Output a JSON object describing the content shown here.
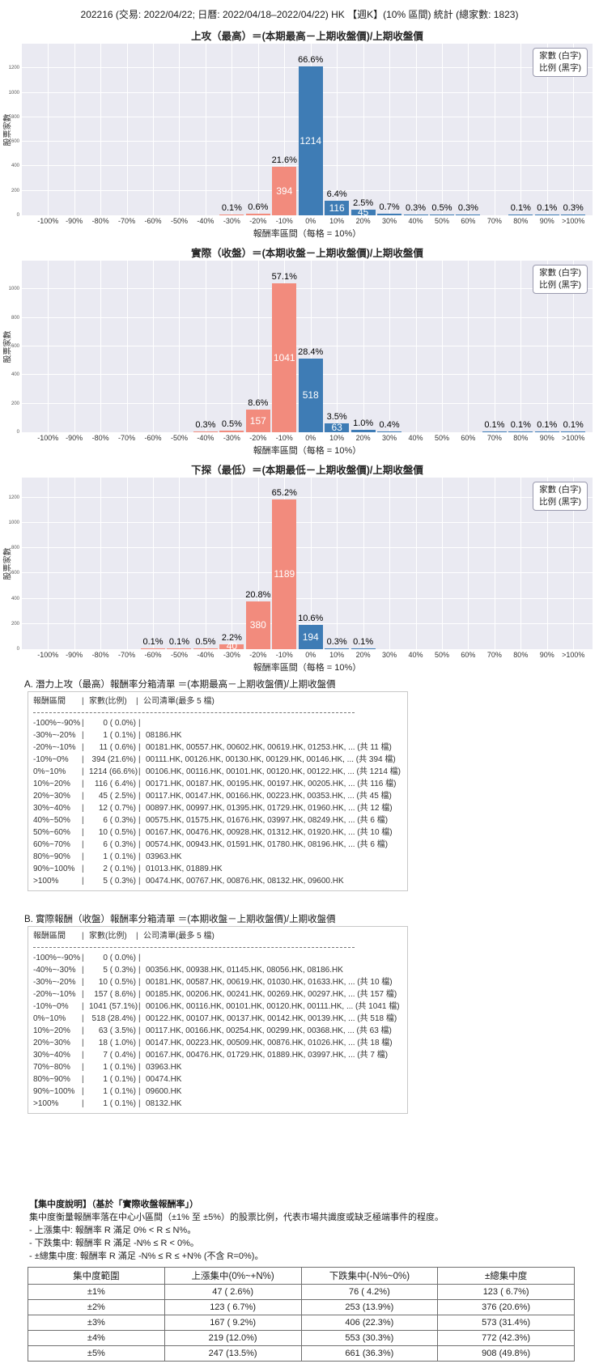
{
  "page_title": "202216 (交易: 2022/04/22; 日曆: 2022/04/18–2022/04/22) HK 【週K】(10% 區間) 統計 (總家數: 1823)",
  "total_count": 1823,
  "colors": {
    "negative_bar": "#F28B7D",
    "positive_bar": "#3E7CB5",
    "plot_bg": "#EAEAF2",
    "grid": "#FFFFFF"
  },
  "legend": {
    "line1": "家數 (白字)",
    "line2": "比例 (黑字)"
  },
  "axis": {
    "ylabel": "股票家數",
    "xlabel": "報酬率區間（每格 = 10%）"
  },
  "chart_data": [
    {
      "type": "bar",
      "title": "上攻（最高）＝(本期最高－上期收盤價)/上期收盤價",
      "categories": [
        "-100%",
        "-90%",
        "-80%",
        "-70%",
        "-60%",
        "-50%",
        "-40%",
        "-30%",
        "-20%",
        "-10%",
        "0%",
        "10%",
        "20%",
        "30%",
        "40%",
        "50%",
        "60%",
        "70%",
        "80%",
        "90%",
        ">100%"
      ],
      "values": [
        0,
        0,
        0,
        0,
        0,
        0,
        0,
        1,
        11,
        394,
        1214,
        116,
        45,
        12,
        6,
        10,
        6,
        0,
        1,
        2,
        5
      ],
      "pct_labels": [
        "",
        "",
        "",
        "",
        "",
        "",
        "",
        "0.1%",
        "0.6%",
        "21.6%",
        "66.6%",
        "6.4%",
        "2.5%",
        "0.7%",
        "0.3%",
        "0.5%",
        "0.3%",
        "",
        "0.1%",
        "0.1%",
        "0.3%"
      ],
      "xlabel": "報酬率區間（每格 = 10%）",
      "ylabel": "股票家數",
      "yticks": [
        0,
        200,
        400,
        600,
        800,
        1000,
        1200
      ],
      "ymax": 1400
    },
    {
      "type": "bar",
      "title": "實際（收盤）＝(本期收盤－上期收盤價)/上期收盤價",
      "categories": [
        "-100%",
        "-90%",
        "-80%",
        "-70%",
        "-60%",
        "-50%",
        "-40%",
        "-30%",
        "-20%",
        "-10%",
        "0%",
        "10%",
        "20%",
        "30%",
        "40%",
        "50%",
        "60%",
        "70%",
        "80%",
        "90%",
        ">100%"
      ],
      "values": [
        0,
        0,
        0,
        0,
        0,
        0,
        5,
        10,
        157,
        1041,
        518,
        63,
        18,
        7,
        0,
        0,
        0,
        1,
        1,
        1,
        1
      ],
      "pct_labels": [
        "",
        "",
        "",
        "",
        "",
        "",
        "0.3%",
        "0.5%",
        "8.6%",
        "57.1%",
        "28.4%",
        "3.5%",
        "1.0%",
        "0.4%",
        "",
        "",
        "",
        "0.1%",
        "0.1%",
        "0.1%",
        "0.1%"
      ],
      "xlabel": "報酬率區間（每格 = 10%）",
      "ylabel": "股票家數",
      "yticks": [
        0,
        200,
        400,
        600,
        800,
        1000
      ],
      "ymax": 1200
    },
    {
      "type": "bar",
      "title": "下探（最低）＝(本期最低－上期收盤價)/上期收盤價",
      "categories": [
        "-100%",
        "-90%",
        "-80%",
        "-70%",
        "-60%",
        "-50%",
        "-40%",
        "-30%",
        "-20%",
        "-10%",
        "0%",
        "10%",
        "20%",
        "30%",
        "40%",
        "50%",
        "60%",
        "70%",
        "80%",
        "90%",
        ">100%"
      ],
      "values": [
        0,
        0,
        0,
        0,
        2,
        2,
        9,
        40,
        380,
        1189,
        194,
        5,
        2,
        0,
        0,
        0,
        0,
        0,
        0,
        0,
        0
      ],
      "pct_labels": [
        "",
        "",
        "",
        "",
        "0.1%",
        "0.1%",
        "0.5%",
        "2.2%",
        "20.8%",
        "65.2%",
        "10.6%",
        "0.3%",
        "0.1%",
        "",
        "",
        "",
        "",
        "",
        "",
        "",
        ""
      ],
      "xlabel": "報酬率區間（每格 = 10%）",
      "ylabel": "股票家數",
      "yticks": [
        0,
        200,
        400,
        600,
        800,
        1000,
        1200
      ],
      "ymax": 1360
    }
  ],
  "list_a": {
    "title": "A. 潛力上攻（最高）報酬率分箱清單 ＝(本期最高－上期收盤價)/上期收盤價",
    "columns": {
      "range": "報酬區間",
      "count": "家數(比例)",
      "companies": "公司清單(最多 5 檔)"
    },
    "rows": [
      {
        "range": "-100%~-90%",
        "count": "0 ( 0.0%)",
        "companies": ""
      },
      {
        "range": "-30%~-20%",
        "count": "1 ( 0.1%)",
        "companies": "08186.HK"
      },
      {
        "range": "-20%~-10%",
        "count": "11 ( 0.6%)",
        "companies": "00181.HK, 00557.HK, 00602.HK, 00619.HK, 01253.HK, ... (共 11 檔)"
      },
      {
        "range": "-10%~0%",
        "count": "394 (21.6%)",
        "companies": "00111.HK, 00126.HK, 00130.HK, 00129.HK, 00146.HK, ... (共 394 檔)"
      },
      {
        "range": "0%~10%",
        "count": "1214 (66.6%)",
        "companies": "00106.HK, 00116.HK, 00101.HK, 00120.HK, 00122.HK, ... (共 1214 檔)"
      },
      {
        "range": "10%~20%",
        "count": "116 ( 6.4%)",
        "companies": "00171.HK, 00187.HK, 00195.HK, 00197.HK, 00205.HK, ... (共 116 檔)"
      },
      {
        "range": "20%~30%",
        "count": "45 ( 2.5%)",
        "companies": "00117.HK, 00147.HK, 00166.HK, 00223.HK, 00353.HK, ... (共 45 檔)"
      },
      {
        "range": "30%~40%",
        "count": "12 ( 0.7%)",
        "companies": "00897.HK, 00997.HK, 01395.HK, 01729.HK, 01960.HK, ... (共 12 檔)"
      },
      {
        "range": "40%~50%",
        "count": "6 ( 0.3%)",
        "companies": "00575.HK, 01575.HK, 01676.HK, 03997.HK, 08249.HK, ... (共 6 檔)"
      },
      {
        "range": "50%~60%",
        "count": "10 ( 0.5%)",
        "companies": "00167.HK, 00476.HK, 00928.HK, 01312.HK, 01920.HK, ... (共 10 檔)"
      },
      {
        "range": "60%~70%",
        "count": "6 ( 0.3%)",
        "companies": "00574.HK, 00943.HK, 01591.HK, 01780.HK, 08196.HK, ... (共 6 檔)"
      },
      {
        "range": "80%~90%",
        "count": "1 ( 0.1%)",
        "companies": "03963.HK"
      },
      {
        "range": "90%~100%",
        "count": "2 ( 0.1%)",
        "companies": "01013.HK, 01889.HK"
      },
      {
        "range": ">100%",
        "count": "5 ( 0.3%)",
        "companies": "00474.HK, 00767.HK, 00876.HK, 08132.HK, 09600.HK"
      }
    ]
  },
  "list_b": {
    "title": "B. 實際報酬（收盤）報酬率分箱清單 ＝(本期收盤－上期收盤價)/上期收盤價",
    "columns": {
      "range": "報酬區間",
      "count": "家數(比例)",
      "companies": "公司清單(最多 5 檔)"
    },
    "rows": [
      {
        "range": "-100%~-90%",
        "count": "0 ( 0.0%)",
        "companies": ""
      },
      {
        "range": "-40%~-30%",
        "count": "5 ( 0.3%)",
        "companies": "00356.HK, 00938.HK, 01145.HK, 08056.HK, 08186.HK"
      },
      {
        "range": "-30%~-20%",
        "count": "10 ( 0.5%)",
        "companies": "00181.HK, 00587.HK, 00619.HK, 01030.HK, 01633.HK, ... (共 10 檔)"
      },
      {
        "range": "-20%~-10%",
        "count": "157 ( 8.6%)",
        "companies": "00185.HK, 00206.HK, 00241.HK, 00269.HK, 00297.HK, ... (共 157 檔)"
      },
      {
        "range": "-10%~0%",
        "count": "1041 (57.1%)",
        "companies": "00106.HK, 00116.HK, 00101.HK, 00120.HK, 00111.HK, ... (共 1041 檔)"
      },
      {
        "range": "0%~10%",
        "count": "518 (28.4%)",
        "companies": "00122.HK, 00107.HK, 00137.HK, 00142.HK, 00139.HK, ... (共 518 檔)"
      },
      {
        "range": "10%~20%",
        "count": "63 ( 3.5%)",
        "companies": "00117.HK, 00166.HK, 00254.HK, 00299.HK, 00368.HK, ... (共 63 檔)"
      },
      {
        "range": "20%~30%",
        "count": "18 ( 1.0%)",
        "companies": "00147.HK, 00223.HK, 00509.HK, 00876.HK, 01026.HK, ... (共 18 檔)"
      },
      {
        "range": "30%~40%",
        "count": "7 ( 0.4%)",
        "companies": "00167.HK, 00476.HK, 01729.HK, 01889.HK, 03997.HK, ... (共 7 檔)"
      },
      {
        "range": "70%~80%",
        "count": "1 ( 0.1%)",
        "companies": "03963.HK"
      },
      {
        "range": "80%~90%",
        "count": "1 ( 0.1%)",
        "companies": "00474.HK"
      },
      {
        "range": "90%~100%",
        "count": "1 ( 0.1%)",
        "companies": "09600.HK"
      },
      {
        "range": ">100%",
        "count": "1 ( 0.1%)",
        "companies": "08132.HK"
      }
    ]
  },
  "concentration": {
    "heading": "【集中度說明】（基於「實際收盤報酬率」）",
    "desc": "集中度衡量報酬率落在中心小區間（±1% 至 ±5%）的股票比例，代表市場共識度或缺乏極端事件的程度。",
    "bullets": [
      "- 上漲集中: 報酬率 R 滿足 0% < R ≤ N%。",
      "- 下跌集中: 報酬率 R 滿足 -N% ≤ R < 0%。",
      "- ±總集中度: 報酬率 R 滿足 -N% ≤ R ≤ +N% (不含 R=0%)。"
    ],
    "table": {
      "headers": [
        "集中度範圍",
        "上漲集中(0%~+N%)",
        "下跌集中(-N%~0%)",
        "±總集中度"
      ],
      "rows": [
        [
          "±1%",
          "47 ( 2.6%)",
          "76 ( 4.2%)",
          "123 ( 6.7%)"
        ],
        [
          "±2%",
          "123 ( 6.7%)",
          "253 (13.9%)",
          "376 (20.6%)"
        ],
        [
          "±3%",
          "167 ( 9.2%)",
          "406 (22.3%)",
          "573 (31.4%)"
        ],
        [
          "±4%",
          "219 (12.0%)",
          "553 (30.3%)",
          "772 (42.3%)"
        ],
        [
          "±5%",
          "247 (13.5%)",
          "661 (36.3%)",
          "908 (49.8%)"
        ]
      ]
    }
  }
}
